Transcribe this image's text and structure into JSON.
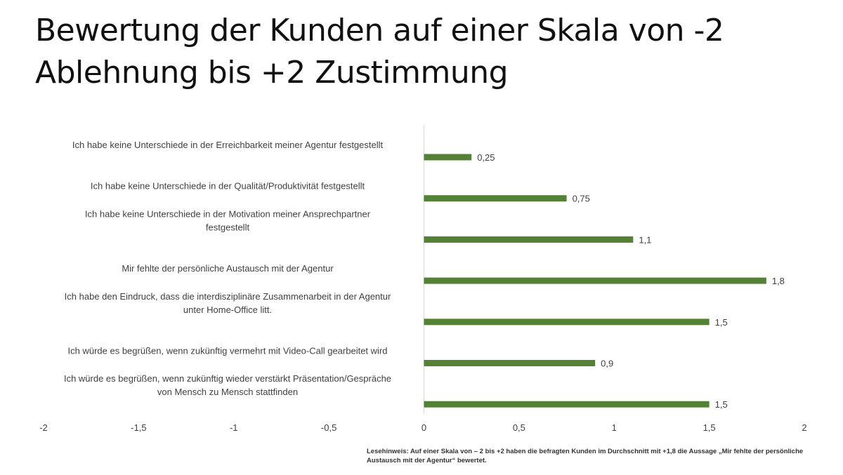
{
  "title_line1": "Bewertung der Kunden auf einer Skala von -2",
  "title_line2": "Ablehnung bis +2 Zustimmung",
  "note": "Lesehinweis: Auf einer Skala von – 2 bis +2 haben die befragten Kunden im Durchschnitt mit +1,8 die Aussage „Mir fehlte der persönliche Austausch mit der Agentur“ bewertet.",
  "colors": {
    "bar": "#548235",
    "axis": "#d9d9d9",
    "text": "#404040"
  },
  "chart_data": {
    "type": "bar",
    "orientation": "horizontal",
    "categories": [
      [
        "Ich habe keine Unterschiede in der Erreichbarkeit meiner Agentur festgestellt"
      ],
      [
        "Ich habe keine Unterschiede in der Qualität/Produktivität festgestellt"
      ],
      [
        "Ich habe keine Unterschiede in der Motivation meiner Ansprechpartner",
        "festgestellt"
      ],
      [
        "Mir fehlte der persönliche Austausch mit der Agentur"
      ],
      [
        "Ich habe den Eindruck, dass die interdisziplinäre Zusammenarbeit in der Agentur",
        "unter Home-Office litt."
      ],
      [
        "Ich würde es begrüßen, wenn zukünftig vermehrt mit Video-Call gearbeitet wird"
      ],
      [
        "Ich würde es begrüßen, wenn zukünftig wieder verstärkt Präsentation/Gespräche",
        "von Mensch zu Mensch stattfinden"
      ]
    ],
    "values": [
      0.25,
      0.75,
      1.1,
      1.8,
      1.5,
      0.9,
      1.5
    ],
    "value_labels": [
      "0,25",
      "0,75",
      "1,1",
      "1,8",
      "1,5",
      "0,9",
      "1,5"
    ],
    "xlim": [
      -2,
      2
    ],
    "xticks": [
      -2,
      -1.5,
      -1,
      -0.5,
      0,
      0.5,
      1,
      1.5,
      2
    ],
    "xtick_labels": [
      "-2",
      "-1,5",
      "-1",
      "-0,5",
      "0",
      "0,5",
      "1",
      "1,5",
      "2"
    ],
    "grid": false,
    "legend": "none"
  }
}
